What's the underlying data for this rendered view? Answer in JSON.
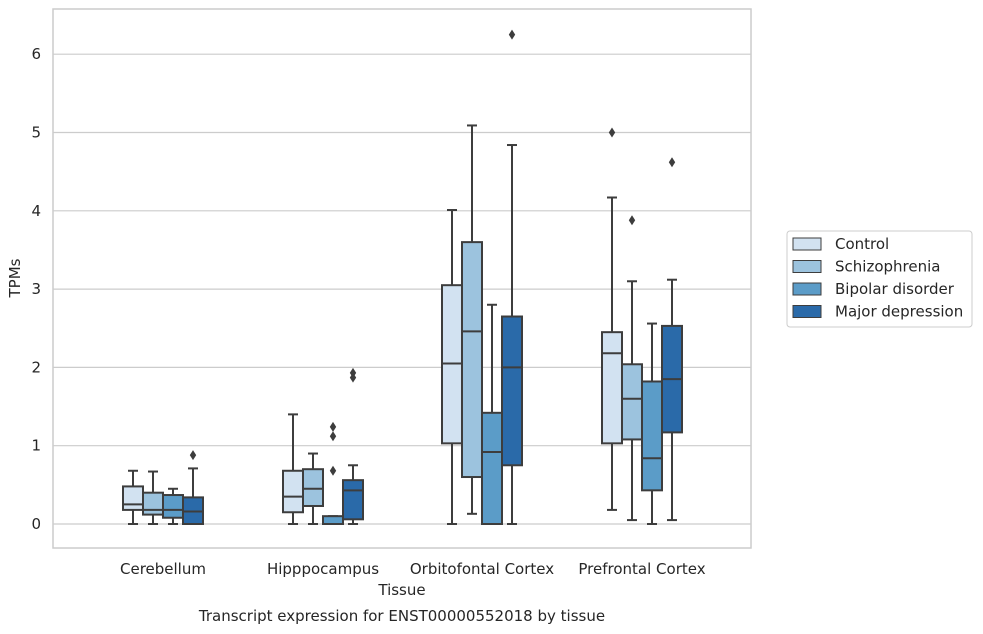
{
  "chart_data": {
    "type": "box",
    "title": "",
    "caption": "Transcript expression for ENST00000552018 by tissue",
    "xlabel": "Tissue",
    "ylabel": "TPMs",
    "ylim": [
      -0.3,
      6.6
    ],
    "yticks": [
      0,
      1,
      2,
      3,
      4,
      5,
      6
    ],
    "grid": "horizontal",
    "legend_position": "right",
    "categories": [
      "Cerebellum",
      "Hipppocampus",
      "Orbitofontal Cortex",
      "Prefrontal Cortex"
    ],
    "series": [
      {
        "name": "Control",
        "color": "#d2e2f1",
        "boxes": [
          {
            "whislo": 0.0,
            "q1": 0.18,
            "med": 0.25,
            "q3": 0.48,
            "whishi": 0.68,
            "fliers": []
          },
          {
            "whislo": 0.0,
            "q1": 0.15,
            "med": 0.35,
            "q3": 0.68,
            "whishi": 1.4,
            "fliers": []
          },
          {
            "whislo": 0.0,
            "q1": 1.03,
            "med": 2.05,
            "q3": 3.05,
            "whishi": 4.01,
            "fliers": []
          },
          {
            "whislo": 0.18,
            "q1": 1.03,
            "med": 2.18,
            "q3": 2.45,
            "whishi": 4.17,
            "fliers": [
              5.0
            ]
          }
        ]
      },
      {
        "name": "Schizophrenia",
        "color": "#9cc3de",
        "boxes": [
          {
            "whislo": 0.0,
            "q1": 0.12,
            "med": 0.18,
            "q3": 0.4,
            "whishi": 0.67,
            "fliers": []
          },
          {
            "whislo": 0.0,
            "q1": 0.23,
            "med": 0.45,
            "q3": 0.7,
            "whishi": 0.9,
            "fliers": []
          },
          {
            "whislo": 0.13,
            "q1": 0.6,
            "med": 2.46,
            "q3": 3.6,
            "whishi": 5.09,
            "fliers": []
          },
          {
            "whislo": 0.05,
            "q1": 1.08,
            "med": 1.6,
            "q3": 2.04,
            "whishi": 3.1,
            "fliers": [
              3.88
            ]
          }
        ]
      },
      {
        "name": "Bipolar disorder",
        "color": "#5b9cc8",
        "boxes": [
          {
            "whislo": 0.0,
            "q1": 0.08,
            "med": 0.18,
            "q3": 0.37,
            "whishi": 0.45,
            "fliers": []
          },
          {
            "whislo": 0.0,
            "q1": 0.0,
            "med": 0.0,
            "q3": 0.1,
            "whishi": 0.1,
            "fliers": [
              0.68,
              1.12,
              1.24
            ]
          },
          {
            "whislo": 0.0,
            "q1": 0.0,
            "med": 0.92,
            "q3": 1.42,
            "whishi": 2.8,
            "fliers": []
          },
          {
            "whislo": 0.0,
            "q1": 0.43,
            "med": 0.84,
            "q3": 1.82,
            "whishi": 2.56,
            "fliers": []
          }
        ]
      },
      {
        "name": "Major depression",
        "color": "#2a6aa9",
        "boxes": [
          {
            "whislo": 0.0,
            "q1": 0.0,
            "med": 0.16,
            "q3": 0.34,
            "whishi": 0.71,
            "fliers": [
              0.88
            ]
          },
          {
            "whislo": 0.0,
            "q1": 0.06,
            "med": 0.43,
            "q3": 0.56,
            "whishi": 0.75,
            "fliers": [
              1.87,
              1.93
            ]
          },
          {
            "whislo": 0.0,
            "q1": 0.75,
            "med": 2.0,
            "q3": 2.65,
            "whishi": 4.84,
            "fliers": [
              6.25
            ]
          },
          {
            "whislo": 0.05,
            "q1": 1.17,
            "med": 1.85,
            "q3": 2.53,
            "whishi": 3.12,
            "fliers": [
              4.62
            ]
          }
        ]
      }
    ]
  }
}
